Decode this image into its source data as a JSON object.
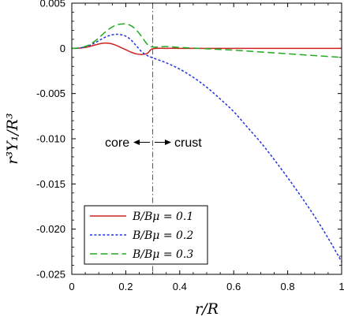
{
  "chart_data": {
    "type": "line",
    "xlabel": "r/R",
    "ylabel": "r³Y₁/R³",
    "xlim": [
      0,
      1
    ],
    "ylim": [
      -0.025,
      0.005
    ],
    "x_ticks": [
      {
        "v": 0,
        "label": "0"
      },
      {
        "v": 0.2,
        "label": "0.2"
      },
      {
        "v": 0.4,
        "label": "0.4"
      },
      {
        "v": 0.6,
        "label": "0.6"
      },
      {
        "v": 0.8,
        "label": "0.8"
      },
      {
        "v": 1,
        "label": "1"
      }
    ],
    "y_ticks": [
      {
        "v": 0.005,
        "label": "0.005"
      },
      {
        "v": 0,
        "label": "0"
      },
      {
        "v": -0.005,
        "label": "-0.005"
      },
      {
        "v": -0.01,
        "label": "-0.010"
      },
      {
        "v": -0.015,
        "label": "-0.015"
      },
      {
        "v": -0.02,
        "label": "-0.020"
      },
      {
        "v": -0.025,
        "label": "-0.025"
      }
    ],
    "grid": false,
    "legend_position": "bottom-left",
    "core_crust_boundary": 0.3,
    "annotations": {
      "core": "core",
      "crust": "crust"
    },
    "series": [
      {
        "name": "B/Bμ = 0.1",
        "color": "#cc2222",
        "style": "solid",
        "x": [
          0,
          0.02,
          0.04,
          0.06,
          0.08,
          0.1,
          0.12,
          0.14,
          0.16,
          0.18,
          0.2,
          0.22,
          0.24,
          0.26,
          0.28,
          0.3,
          0.35,
          0.4,
          0.5,
          0.6,
          0.7,
          0.8,
          0.9,
          1.0
        ],
        "y": [
          0,
          1e-05,
          6e-05,
          0.00016,
          0.00032,
          0.00048,
          0.00058,
          0.00055,
          0.00038,
          0.00012,
          -0.00015,
          -0.00043,
          -0.00062,
          -0.00068,
          -0.00055,
          -5e-05,
          0,
          0,
          0,
          0,
          0,
          0,
          0,
          0
        ]
      },
      {
        "name": "B/Bμ = 0.2",
        "color": "#2233dd",
        "style": "dotted",
        "x": [
          0,
          0.02,
          0.04,
          0.06,
          0.08,
          0.1,
          0.12,
          0.14,
          0.16,
          0.18,
          0.2,
          0.22,
          0.24,
          0.26,
          0.28,
          0.3,
          0.35,
          0.4,
          0.45,
          0.5,
          0.55,
          0.6,
          0.65,
          0.7,
          0.75,
          0.8,
          0.85,
          0.9,
          0.95,
          1.0
        ],
        "y": [
          0,
          2e-05,
          0.0001,
          0.00026,
          0.00052,
          0.00085,
          0.00118,
          0.00142,
          0.00155,
          0.00152,
          0.00135,
          0.00092,
          0.00025,
          -0.0004,
          -0.0008,
          -0.00105,
          -0.0016,
          -0.0023,
          -0.0032,
          -0.0043,
          -0.0056,
          -0.007,
          -0.0087,
          -0.0104,
          -0.0123,
          -0.0143,
          -0.0164,
          -0.0186,
          -0.021,
          -0.0236
        ]
      },
      {
        "name": "B/Bμ = 0.3",
        "color": "#22aa22",
        "style": "dashed",
        "x": [
          0,
          0.02,
          0.04,
          0.06,
          0.08,
          0.1,
          0.12,
          0.14,
          0.16,
          0.18,
          0.2,
          0.22,
          0.24,
          0.26,
          0.28,
          0.3,
          0.35,
          0.4,
          0.5,
          0.6,
          0.7,
          0.8,
          0.9,
          1.0
        ],
        "y": [
          0,
          3e-05,
          0.00012,
          0.00033,
          0.00068,
          0.00115,
          0.0017,
          0.00218,
          0.00252,
          0.00268,
          0.0027,
          0.0025,
          0.002,
          0.00125,
          0.00045,
          0.00015,
          0.0002,
          0.0001,
          -5e-05,
          -0.0002,
          -0.0004,
          -0.0006,
          -0.0008,
          -0.001
        ]
      }
    ]
  }
}
